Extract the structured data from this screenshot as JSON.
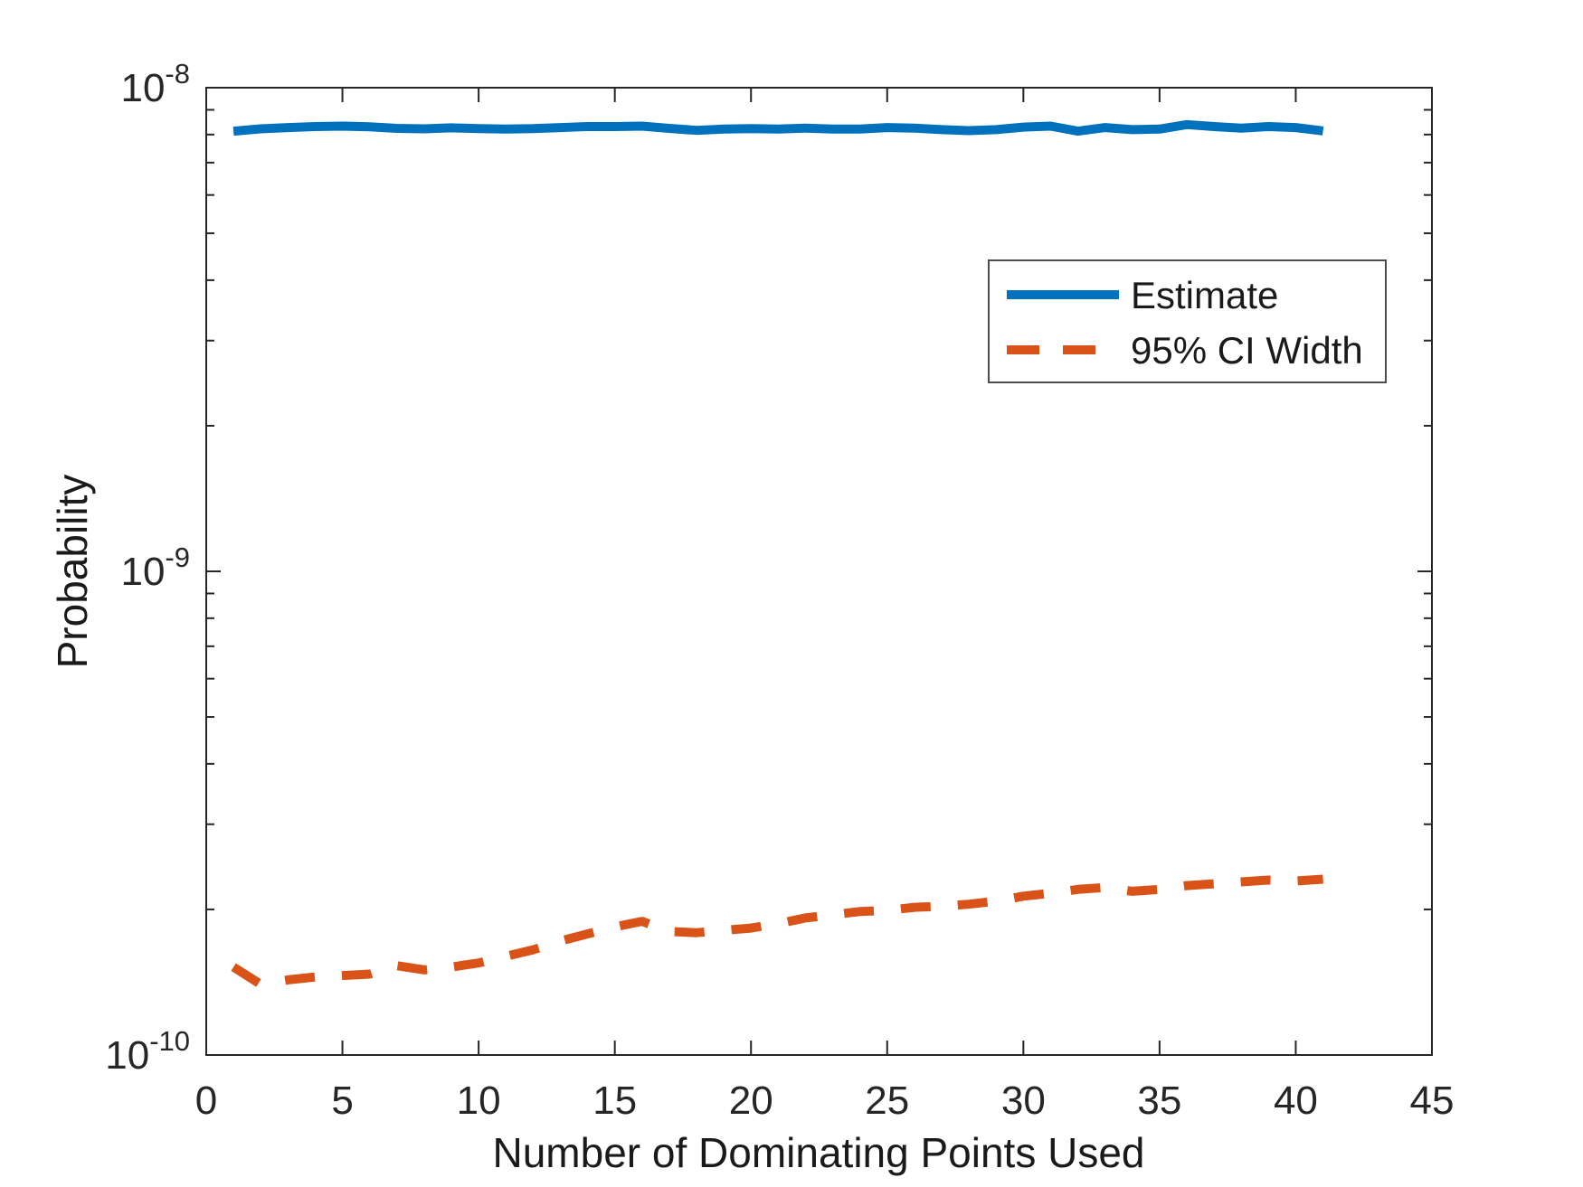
{
  "colors": {
    "background": "#ffffff",
    "axis": "#262626",
    "label_text": "#1a1a1a",
    "legend_border": "#4d4d4d",
    "estimate_blue": "#0072BD",
    "ci_orange": "#D95319"
  },
  "chart_data": {
    "type": "line",
    "title": "",
    "xlabel": "Number of Dominating Points Used",
    "ylabel": "Probability",
    "xlim": [
      0,
      45
    ],
    "ylim": [
      1e-10,
      1e-08
    ],
    "yscale": "log",
    "grid": false,
    "x_ticks": [
      0,
      5,
      10,
      15,
      20,
      25,
      30,
      35,
      40,
      45
    ],
    "y_ticks": [
      {
        "value": 1e-08,
        "base": "10",
        "exponent": "-8"
      },
      {
        "value": 1e-09,
        "base": "10",
        "exponent": "-9"
      },
      {
        "value": 1e-10,
        "base": "10",
        "exponent": "-10"
      }
    ],
    "legend": {
      "position": "upper right",
      "entries": [
        "Estimate",
        "95% CI Width"
      ]
    },
    "x": [
      1,
      2,
      3,
      4,
      5,
      6,
      7,
      8,
      9,
      10,
      11,
      12,
      13,
      14,
      15,
      16,
      17,
      18,
      19,
      20,
      21,
      22,
      23,
      24,
      25,
      26,
      27,
      28,
      29,
      30,
      31,
      32,
      33,
      34,
      35,
      36,
      37,
      38,
      39,
      40,
      41
    ],
    "series": [
      {
        "name": "Estimate",
        "color": "#0072BD",
        "line_style": "solid",
        "values": [
          8.13e-09,
          8.22e-09,
          8.27e-09,
          8.31e-09,
          8.33e-09,
          8.3e-09,
          8.24e-09,
          8.22e-09,
          8.26e-09,
          8.23e-09,
          8.21e-09,
          8.23e-09,
          8.27e-09,
          8.31e-09,
          8.31e-09,
          8.33e-09,
          8.24e-09,
          8.16e-09,
          8.21e-09,
          8.23e-09,
          8.21e-09,
          8.25e-09,
          8.21e-09,
          8.21e-09,
          8.27e-09,
          8.25e-09,
          8.19e-09,
          8.15e-09,
          8.19e-09,
          8.29e-09,
          8.33e-09,
          8.13e-09,
          8.27e-09,
          8.19e-09,
          8.21e-09,
          8.39e-09,
          8.31e-09,
          8.25e-09,
          8.31e-09,
          8.27e-09,
          8.14e-09
        ]
      },
      {
        "name": "95% CI Width",
        "color": "#D95319",
        "line_style": "dashed",
        "values": [
          1.52e-10,
          1.4e-10,
          1.43e-10,
          1.45e-10,
          1.46e-10,
          1.47e-10,
          1.53e-10,
          1.5e-10,
          1.52e-10,
          1.55e-10,
          1.6e-10,
          1.65e-10,
          1.72e-10,
          1.78e-10,
          1.84e-10,
          1.89e-10,
          1.8e-10,
          1.79e-10,
          1.81e-10,
          1.83e-10,
          1.87e-10,
          1.92e-10,
          1.95e-10,
          1.98e-10,
          1.99e-10,
          2.02e-10,
          2.03e-10,
          2.05e-10,
          2.08e-10,
          2.13e-10,
          2.16e-10,
          2.2e-10,
          2.22e-10,
          2.18e-10,
          2.2e-10,
          2.24e-10,
          2.26e-10,
          2.28e-10,
          2.3e-10,
          2.29e-10,
          2.31e-10
        ]
      }
    ]
  }
}
